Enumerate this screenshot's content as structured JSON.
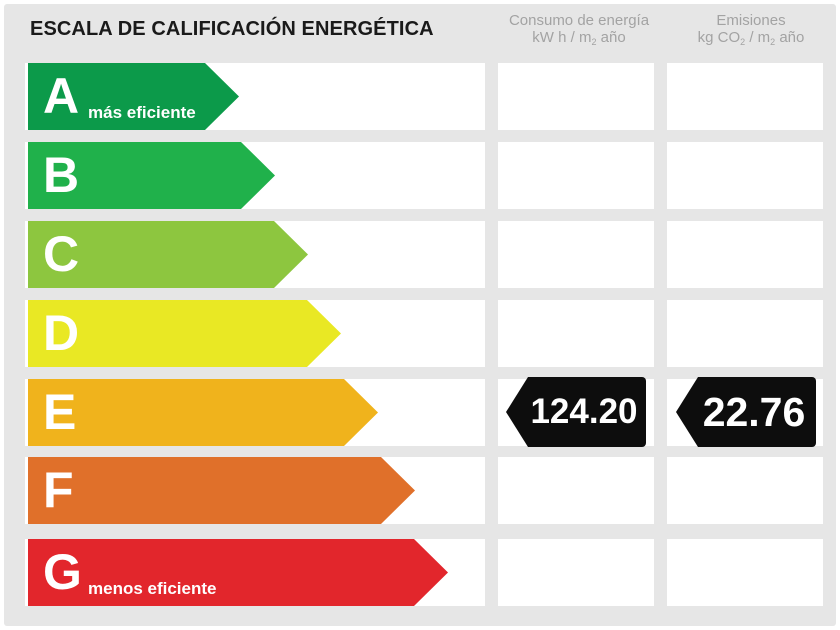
{
  "title": "ESCALA DE CALIFICACIÓN ENERGÉTICA",
  "columns": {
    "consumo": {
      "line1": "Consumo de energía",
      "unit_pre": "kW h / m",
      "unit_sub": "2",
      "unit_post": " año"
    },
    "emisiones": {
      "line1": "Emisiones",
      "unit_pre": "kg CO",
      "unit_sub": "2",
      "unit_mid": " / m",
      "unit_sub2": "2",
      "unit_post": " año"
    }
  },
  "ratings": [
    {
      "letter": "A",
      "desc": "más eficiente",
      "color": "#0c9a4a"
    },
    {
      "letter": "B",
      "desc": "",
      "color": "#20b14b"
    },
    {
      "letter": "C",
      "desc": "",
      "color": "#8dc63f"
    },
    {
      "letter": "D",
      "desc": "",
      "color": "#e9e824"
    },
    {
      "letter": "E",
      "desc": "",
      "color": "#f0b31c"
    },
    {
      "letter": "F",
      "desc": "",
      "color": "#e0702a"
    },
    {
      "letter": "G",
      "desc": "menos eficiente",
      "color": "#e2262c"
    }
  ],
  "result": {
    "rating": "E",
    "consumo_value": "124.20",
    "emisiones_value": "22.76",
    "badge_color": "#0d0d0d"
  }
}
